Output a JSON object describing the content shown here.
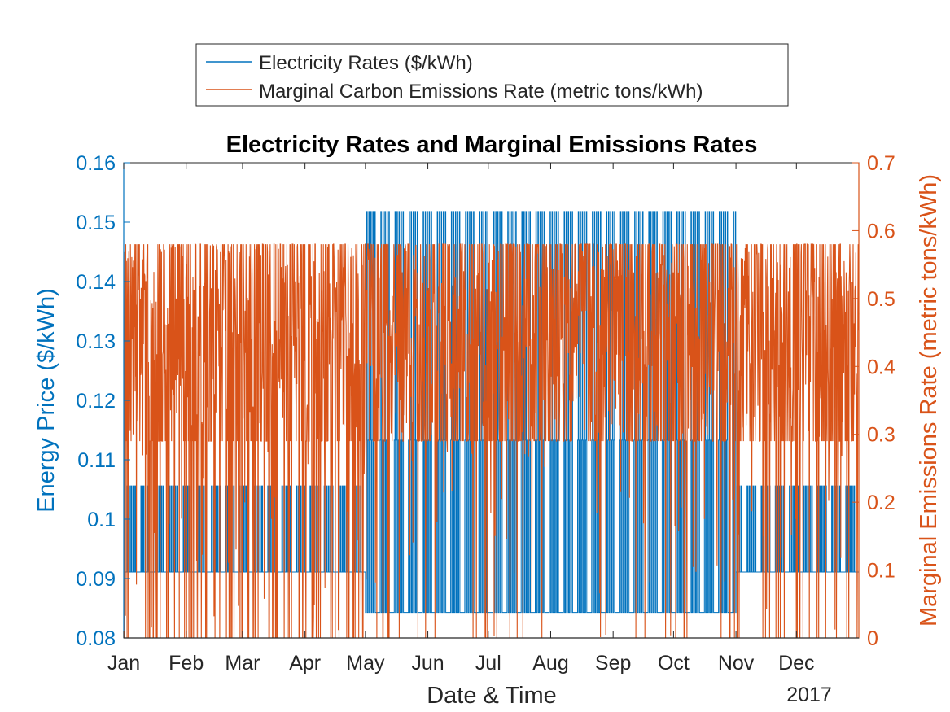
{
  "colors": {
    "electricity": "#0072BD",
    "emissions": "#D95319",
    "axis": "#262626",
    "background": "#ffffff"
  },
  "chart_data": {
    "type": "line",
    "title": "Electricity Rates and Marginal Emissions Rates",
    "xlabel": "Date & Time",
    "ylabel_left": "Energy Price ($/kWh)",
    "ylabel_right": "Marginal Emissions Rate (metric tons/kWh)",
    "x_tick_labels": [
      "Jan",
      "Feb",
      "Mar",
      "Apr",
      "May",
      "Jun",
      "Jul",
      "Aug",
      "Sep",
      "Oct",
      "Nov",
      "Dec"
    ],
    "x_year_label": "2017",
    "xlim": [
      "2017-01-01",
      "2017-12-31"
    ],
    "ylim_left": [
      0.08,
      0.16
    ],
    "ylim_right": [
      0,
      0.7
    ],
    "y_left_ticks": [
      "0.08",
      "0.09",
      "0.1",
      "0.11",
      "0.12",
      "0.13",
      "0.14",
      "0.15",
      "0.16"
    ],
    "y_right_ticks": [
      "0",
      "0.1",
      "0.2",
      "0.3",
      "0.4",
      "0.5",
      "0.6",
      "0.7"
    ],
    "legend": {
      "position": "top-center",
      "entries": [
        "Electricity Rates ($/kWh)",
        "Marginal Carbon Emissions Rate (metric tons/kWh)"
      ]
    },
    "grid": false,
    "series": [
      {
        "name": "Electricity Rates ($/kWh)",
        "axis": "left",
        "levels": [
          0.0911,
          0.1056,
          0.0843,
          0.1133,
          0.1518
        ],
        "periods": [
          {
            "start": "2017-01-01",
            "end": "2017-04-30",
            "values": [
              0.0911,
              0.1056
            ]
          },
          {
            "start": "2017-05-01",
            "end": "2017-10-31",
            "values": [
              0.0843,
              0.1133,
              0.1518
            ]
          },
          {
            "start": "2017-11-01",
            "end": "2017-12-31",
            "values": [
              0.0911,
              0.1056
            ]
          }
        ]
      },
      {
        "name": "Marginal Carbon Emissions Rate (metric tons/kWh)",
        "axis": "right",
        "range": [
          0,
          0.58
        ],
        "typical_low": 0.29,
        "typical_high": 0.58
      }
    ]
  }
}
